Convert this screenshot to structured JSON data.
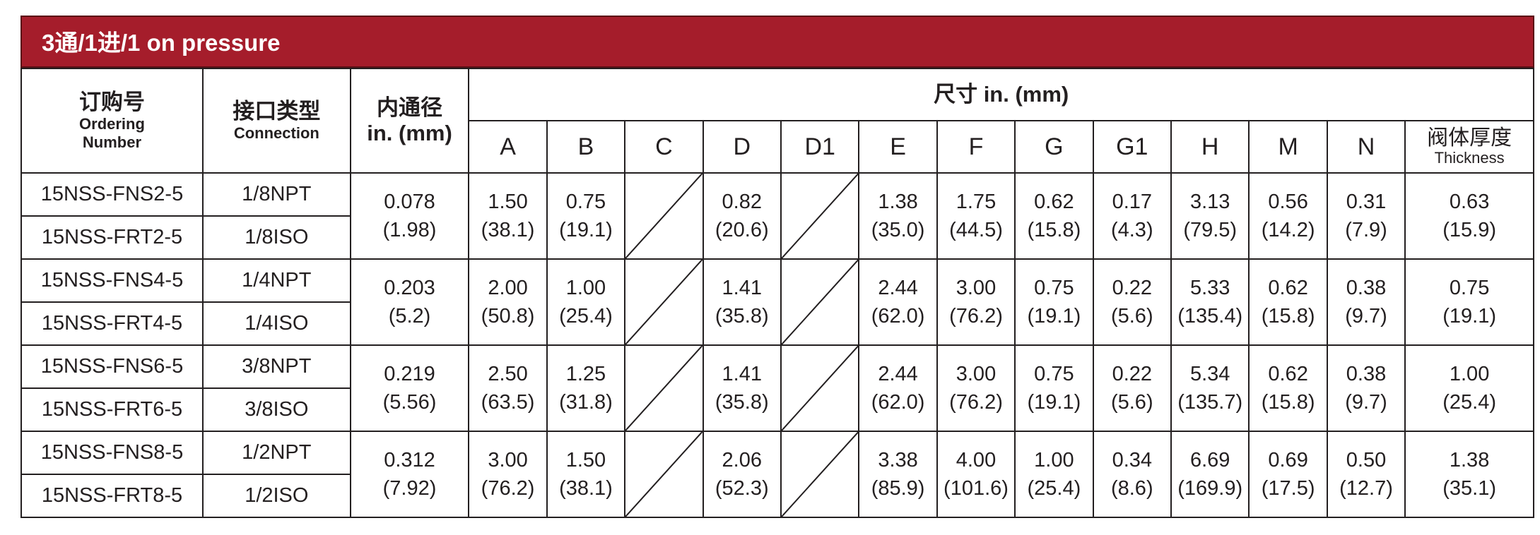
{
  "title": "3通/1进/1 on pressure",
  "headers": {
    "ordering_cn": "订购号",
    "ordering_en1": "Ordering",
    "ordering_en2": "Number",
    "connection_cn": "接口类型",
    "connection_en": "Connection",
    "bore_cn": "内通径",
    "bore_unit": "in. (mm)",
    "dims_title": "尺寸 in. (mm)",
    "dims": [
      "A",
      "B",
      "C",
      "D",
      "D1",
      "E",
      "F",
      "G",
      "G1",
      "H",
      "M",
      "N"
    ],
    "thickness_cn": "阀体厚度",
    "thickness_en": "Thickness"
  },
  "groups": [
    {
      "parts": [
        {
          "number": "15NSS-FNS2-5",
          "connection": "1/8NPT"
        },
        {
          "number": "15NSS-FRT2-5",
          "connection": "1/8ISO"
        }
      ],
      "bore": [
        "0.078",
        "(1.98)"
      ],
      "A": [
        "1.50",
        "(38.1)"
      ],
      "B": [
        "0.75",
        "(19.1)"
      ],
      "D": [
        "0.82",
        "(20.6)"
      ],
      "E": [
        "1.38",
        "(35.0)"
      ],
      "F": [
        "1.75",
        "(44.5)"
      ],
      "G": [
        "0.62",
        "(15.8)"
      ],
      "G1": [
        "0.17",
        "(4.3)"
      ],
      "H": [
        "3.13",
        "(79.5)"
      ],
      "M": [
        "0.56",
        "(14.2)"
      ],
      "N": [
        "0.31",
        "(7.9)"
      ],
      "T": [
        "0.63",
        "(15.9)"
      ]
    },
    {
      "parts": [
        {
          "number": "15NSS-FNS4-5",
          "connection": "1/4NPT"
        },
        {
          "number": "15NSS-FRT4-5",
          "connection": "1/4ISO"
        }
      ],
      "bore": [
        "0.203",
        "(5.2)"
      ],
      "A": [
        "2.00",
        "(50.8)"
      ],
      "B": [
        "1.00",
        "(25.4)"
      ],
      "D": [
        "1.41",
        "(35.8)"
      ],
      "E": [
        "2.44",
        "(62.0)"
      ],
      "F": [
        "3.00",
        "(76.2)"
      ],
      "G": [
        "0.75",
        "(19.1)"
      ],
      "G1": [
        "0.22",
        "(5.6)"
      ],
      "H": [
        "5.33",
        "(135.4)"
      ],
      "M": [
        "0.62",
        "(15.8)"
      ],
      "N": [
        "0.38",
        "(9.7)"
      ],
      "T": [
        "0.75",
        "(19.1)"
      ]
    },
    {
      "parts": [
        {
          "number": "15NSS-FNS6-5",
          "connection": "3/8NPT"
        },
        {
          "number": "15NSS-FRT6-5",
          "connection": "3/8ISO"
        }
      ],
      "bore": [
        "0.219",
        "(5.56)"
      ],
      "A": [
        "2.50",
        "(63.5)"
      ],
      "B": [
        "1.25",
        "(31.8)"
      ],
      "D": [
        "1.41",
        "(35.8)"
      ],
      "E": [
        "2.44",
        "(62.0)"
      ],
      "F": [
        "3.00",
        "(76.2)"
      ],
      "G": [
        "0.75",
        "(19.1)"
      ],
      "G1": [
        "0.22",
        "(5.6)"
      ],
      "H": [
        "5.34",
        "(135.7)"
      ],
      "M": [
        "0.62",
        "(15.8)"
      ],
      "N": [
        "0.38",
        "(9.7)"
      ],
      "T": [
        "1.00",
        "(25.4)"
      ]
    },
    {
      "parts": [
        {
          "number": "15NSS-FNS8-5",
          "connection": "1/2NPT"
        },
        {
          "number": "15NSS-FRT8-5",
          "connection": "1/2ISO"
        }
      ],
      "bore": [
        "0.312",
        "(7.92)"
      ],
      "A": [
        "3.00",
        "(76.2)"
      ],
      "B": [
        "1.50",
        "(38.1)"
      ],
      "D": [
        "2.06",
        "(52.3)"
      ],
      "E": [
        "3.38",
        "(85.9)"
      ],
      "F": [
        "4.00",
        "(101.6)"
      ],
      "G": [
        "1.00",
        "(25.4)"
      ],
      "G1": [
        "0.34",
        "(8.6)"
      ],
      "H": [
        "6.69",
        "(169.9)"
      ],
      "M": [
        "0.69",
        "(17.5)"
      ],
      "N": [
        "0.50",
        "(12.7)"
      ],
      "T": [
        "1.38",
        "(35.1)"
      ]
    }
  ]
}
